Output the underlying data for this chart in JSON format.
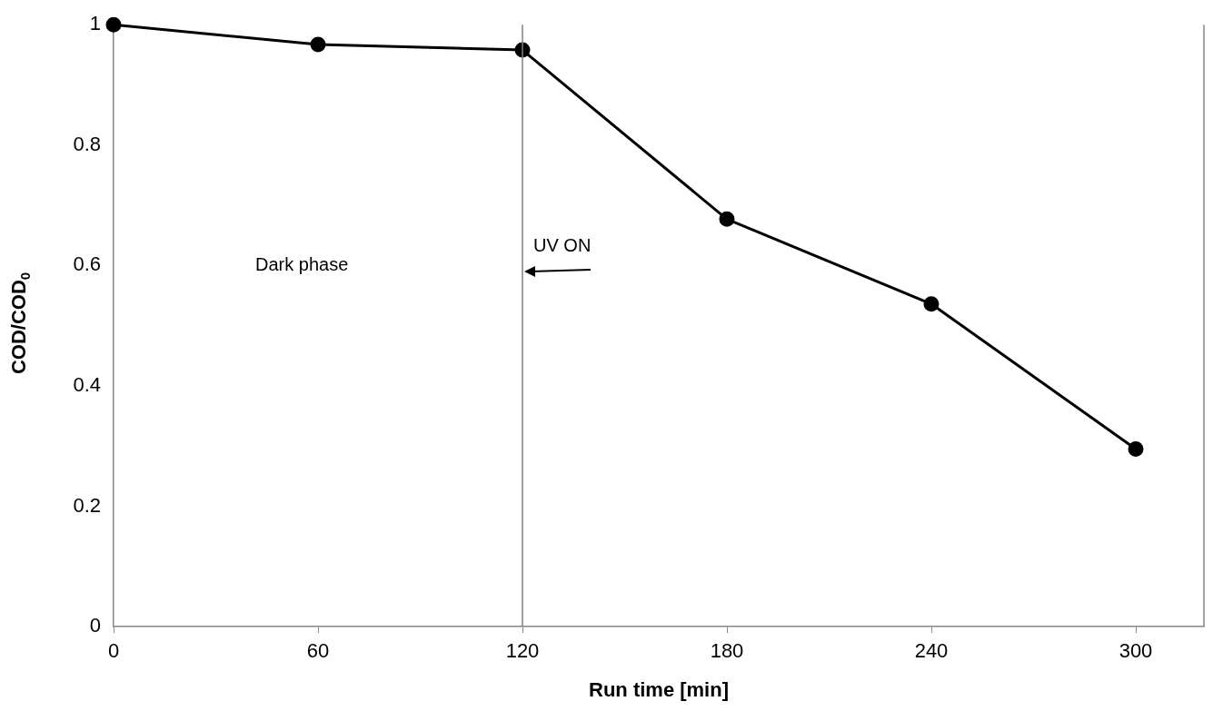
{
  "chart_data": {
    "type": "line",
    "xlabel": "Run time [min]",
    "ylabel": "COD/COD$_{0}$",
    "x": [
      0,
      60,
      120,
      180,
      240,
      300
    ],
    "series": [
      {
        "color": "#000000",
        "values": [
          1,
          0.967,
          0.958,
          0.677,
          0.536,
          0.295
        ]
      }
    ],
    "xlim": [
      0,
      320
    ],
    "xticks": [
      0,
      60,
      120,
      180,
      240,
      300
    ],
    "ylim": [
      0,
      1
    ],
    "yticks": [
      0,
      0.2,
      0.4,
      0.6,
      0.8,
      1
    ],
    "ref_lines": [
      {
        "axis": "x",
        "value": 120,
        "color": "#808080"
      }
    ],
    "annotations": [
      "Dark phase",
      {
        "text": "UV ON",
        "x": 120,
        "y": 0.59
      }
    ],
    "grid": false,
    "legend": false,
    "marker": "circle",
    "line_style": "solid"
  }
}
